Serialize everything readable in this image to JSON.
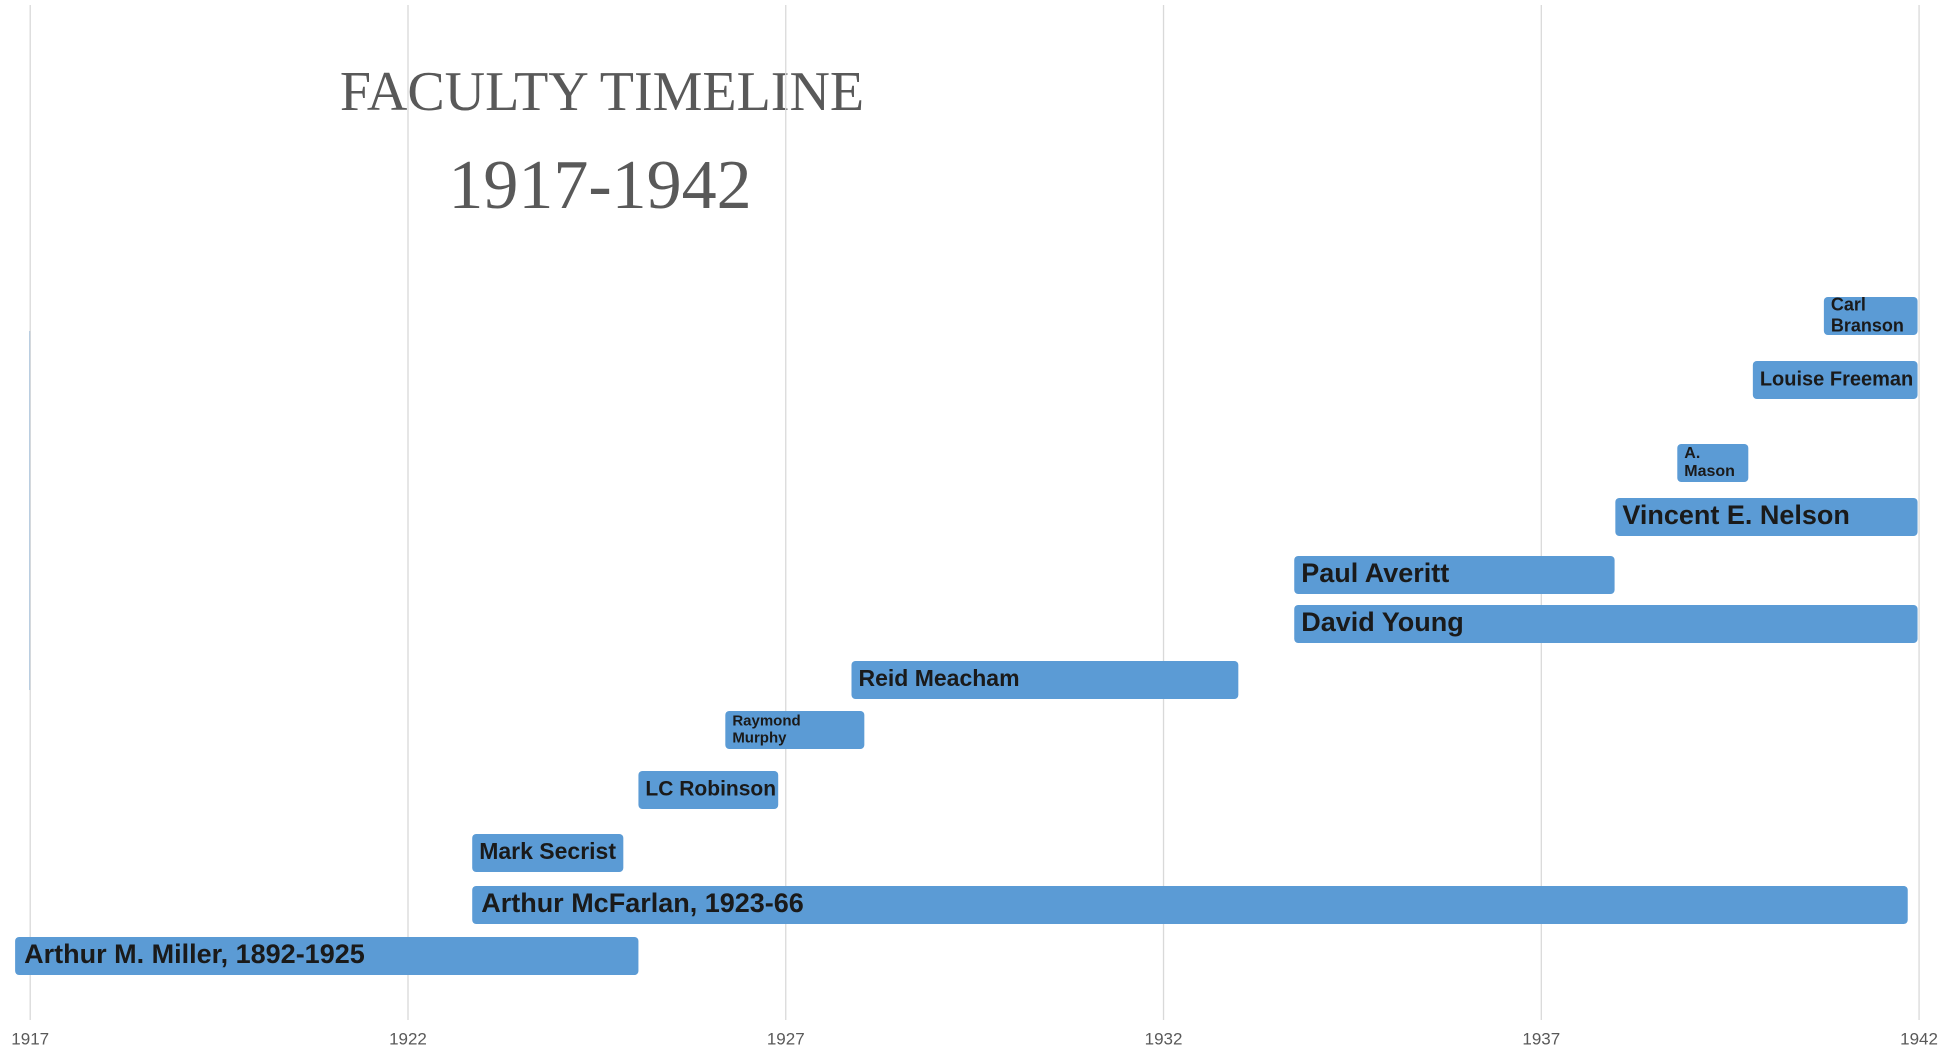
{
  "chart_data": {
    "type": "timeline",
    "title": "FACULTY TIMELINE",
    "subtitle": "1917-1942",
    "categories": [
      "Arthur M. Miller, 1892-1925",
      "Arthur McFarlan, 1923-66",
      "Mark Secrist",
      "LC Robinson",
      "Raymond Murphy",
      "Reid Meacham",
      "David Young",
      "Paul Averitt",
      "Vincent E. Nelson",
      "A. Mason",
      "Louise Freeman",
      "Carl Branson"
    ],
    "start": [
      1916.8,
      1922.85,
      1922.85,
      1925.05,
      1926.2,
      1927.87,
      1933.73,
      1933.73,
      1937.98,
      1938.8,
      1939.8,
      1940.74
    ],
    "end": [
      1925.05,
      1941.85,
      1924.85,
      1926.9,
      1928.04,
      1932.99,
      1941.98,
      1937.97,
      1941.98,
      1939.74,
      1941.98,
      1941.98
    ],
    "color": "#5b9bd5",
    "xlim": [
      1916.6,
      1942.33
    ],
    "xticks": [
      1917,
      1922,
      1927,
      1932,
      1937,
      1942
    ],
    "grid": true
  }
}
